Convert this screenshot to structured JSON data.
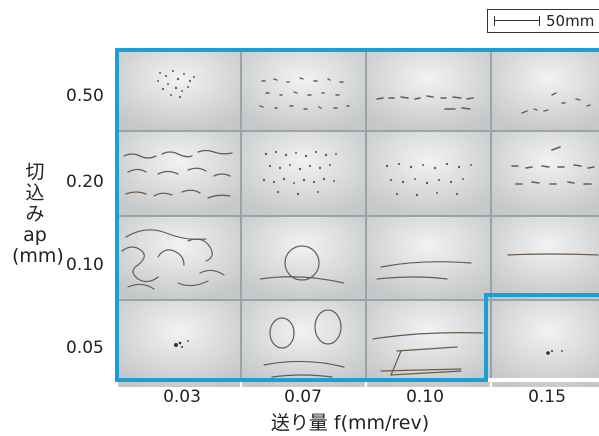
{
  "scale_bar": {
    "label": "50mm"
  },
  "y_axis": {
    "label_chars": [
      "切",
      "込",
      "み"
    ],
    "symbol": "ap",
    "unit": "(mm)"
  },
  "x_axis": {
    "label": "送り量 f(mm/rev)"
  },
  "rows": [
    "0.50",
    "0.20",
    "0.10",
    "0.05"
  ],
  "columns": [
    "0.03",
    "0.07",
    "0.10",
    "0.15"
  ],
  "colors": {
    "highlight": "#1a9fd6",
    "chip": "#6b5a4a",
    "photo_bg": "#d9dadb"
  }
}
